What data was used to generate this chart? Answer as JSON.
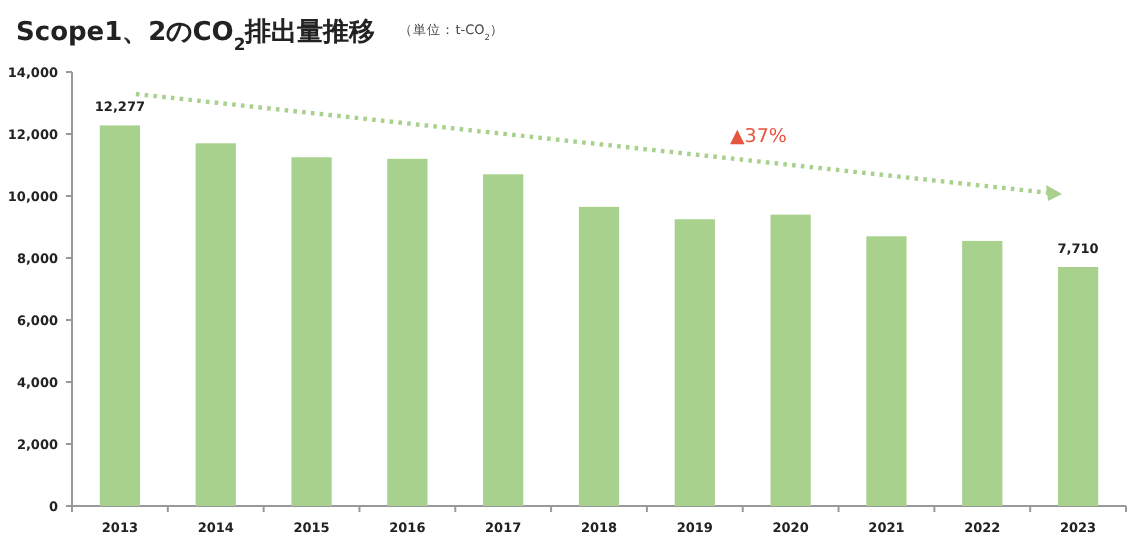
{
  "chart_data": {
    "type": "bar",
    "title": "Scope1、2のCO$_{2}$排出量推移",
    "subtitle": "（単位：t-CO$_{2}$）",
    "categories": [
      "2013",
      "2014",
      "2015",
      "2016",
      "2017",
      "2018",
      "2019",
      "2020",
      "2021",
      "2022",
      "2023"
    ],
    "values": [
      12277,
      11700,
      11250,
      11200,
      10700,
      9650,
      9250,
      9400,
      8700,
      8550,
      7710
    ],
    "value_labels": [
      "12,277",
      null,
      null,
      null,
      null,
      null,
      null,
      null,
      null,
      null,
      "7,710"
    ],
    "color": "#a9d18e",
    "ylim": [
      0,
      14000
    ],
    "yticks": [
      {
        "value": 0,
        "label": "0"
      },
      {
        "value": 2000,
        "label": "2,000"
      },
      {
        "value": 4000,
        "label": "4,000"
      },
      {
        "value": 6000,
        "label": "6,000"
      },
      {
        "value": 8000,
        "label": "8,000"
      },
      {
        "value": 10000,
        "label": "10,000"
      },
      {
        "value": 12000,
        "label": "12,000"
      },
      {
        "value": 14000,
        "label": "14,000"
      }
    ],
    "annotations": [
      "▲37%"
    ],
    "grid": false
  }
}
